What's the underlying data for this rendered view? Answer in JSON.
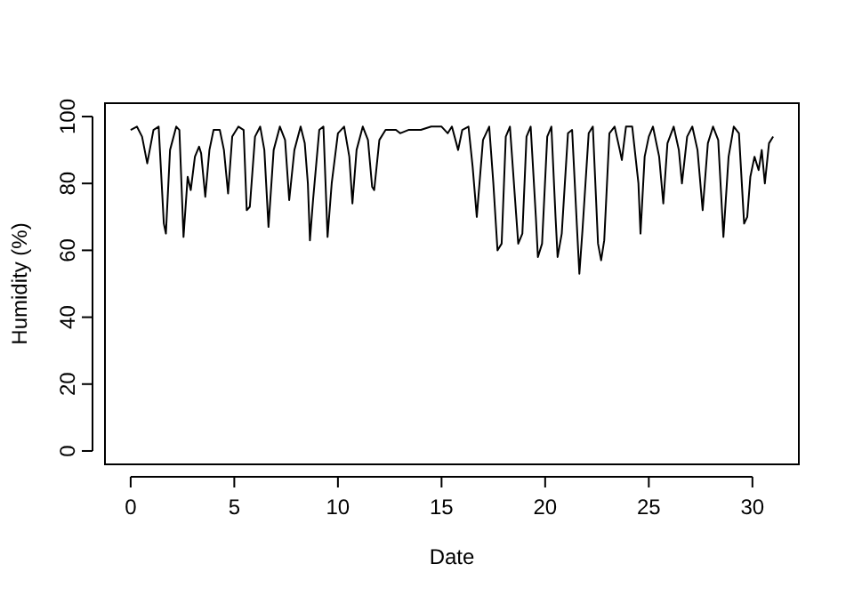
{
  "chart_data": {
    "type": "line",
    "xlabel": "Date",
    "ylabel": "Humidity (%)",
    "xlim": [
      -1.24,
      32.24
    ],
    "ylim": [
      -4,
      104
    ],
    "xticks": [
      0,
      5,
      10,
      15,
      20,
      25,
      30
    ],
    "yticks": [
      0,
      20,
      40,
      60,
      80,
      100
    ],
    "grid": false,
    "marker": "none",
    "line_style": "solid",
    "series": [
      {
        "color": "#000000",
        "x": [
          0.0,
          0.3,
          0.55,
          0.8,
          1.1,
          1.35,
          1.6,
          1.7,
          1.9,
          2.2,
          2.35,
          2.55,
          2.75,
          2.9,
          3.1,
          3.3,
          3.4,
          3.6,
          3.8,
          4.0,
          4.3,
          4.5,
          4.7,
          4.9,
          5.2,
          5.45,
          5.6,
          5.75,
          6.0,
          6.25,
          6.45,
          6.65,
          6.9,
          7.2,
          7.45,
          7.65,
          7.9,
          8.2,
          8.4,
          8.55,
          8.65,
          8.8,
          9.1,
          9.3,
          9.5,
          9.7,
          10.0,
          10.3,
          10.55,
          10.7,
          10.9,
          11.2,
          11.45,
          11.65,
          11.75,
          12.0,
          12.3,
          12.8,
          13.0,
          13.4,
          14.0,
          14.5,
          15.0,
          15.3,
          15.5,
          15.8,
          16.0,
          16.3,
          16.5,
          16.7,
          17.0,
          17.3,
          17.5,
          17.7,
          17.9,
          18.1,
          18.3,
          18.55,
          18.7,
          18.9,
          19.1,
          19.3,
          19.55,
          19.65,
          19.85,
          20.1,
          20.3,
          20.5,
          20.6,
          20.8,
          21.1,
          21.3,
          21.55,
          21.65,
          21.8,
          22.1,
          22.3,
          22.55,
          22.7,
          22.85,
          23.1,
          23.35,
          23.6,
          23.7,
          23.9,
          24.2,
          24.5,
          24.6,
          24.8,
          25.0,
          25.2,
          25.5,
          25.7,
          25.9,
          26.2,
          26.45,
          26.6,
          26.85,
          27.1,
          27.35,
          27.6,
          27.85,
          28.1,
          28.35,
          28.6,
          28.85,
          29.1,
          29.35,
          29.6,
          29.75,
          29.9,
          30.1,
          30.3,
          30.45,
          30.6,
          30.8,
          31.0
        ],
        "values": [
          96,
          97,
          94,
          86,
          96,
          97,
          68,
          65,
          90,
          97,
          96,
          64,
          82,
          78,
          88,
          91,
          89,
          76,
          90,
          96,
          96,
          90,
          77,
          94,
          97,
          96,
          72,
          73,
          94,
          97,
          90,
          67,
          90,
          97,
          93,
          75,
          90,
          97,
          92,
          80,
          63,
          75,
          96,
          97,
          64,
          80,
          95,
          97,
          88,
          74,
          90,
          97,
          93,
          79,
          78,
          93,
          96,
          96,
          95,
          96,
          96,
          97,
          97,
          95,
          97,
          90,
          96,
          97,
          85,
          70,
          93,
          97,
          80,
          60,
          62,
          94,
          97,
          75,
          62,
          65,
          94,
          97,
          70,
          58,
          62,
          94,
          97,
          70,
          58,
          65,
          95,
          96,
          65,
          53,
          66,
          95,
          97,
          62,
          57,
          63,
          95,
          97,
          90,
          87,
          97,
          97,
          80,
          65,
          88,
          94,
          97,
          88,
          74,
          92,
          97,
          90,
          80,
          94,
          97,
          90,
          72,
          92,
          97,
          93,
          64,
          88,
          97,
          95,
          68,
          70,
          82,
          88,
          84,
          90,
          80,
          92,
          94
        ]
      }
    ]
  }
}
